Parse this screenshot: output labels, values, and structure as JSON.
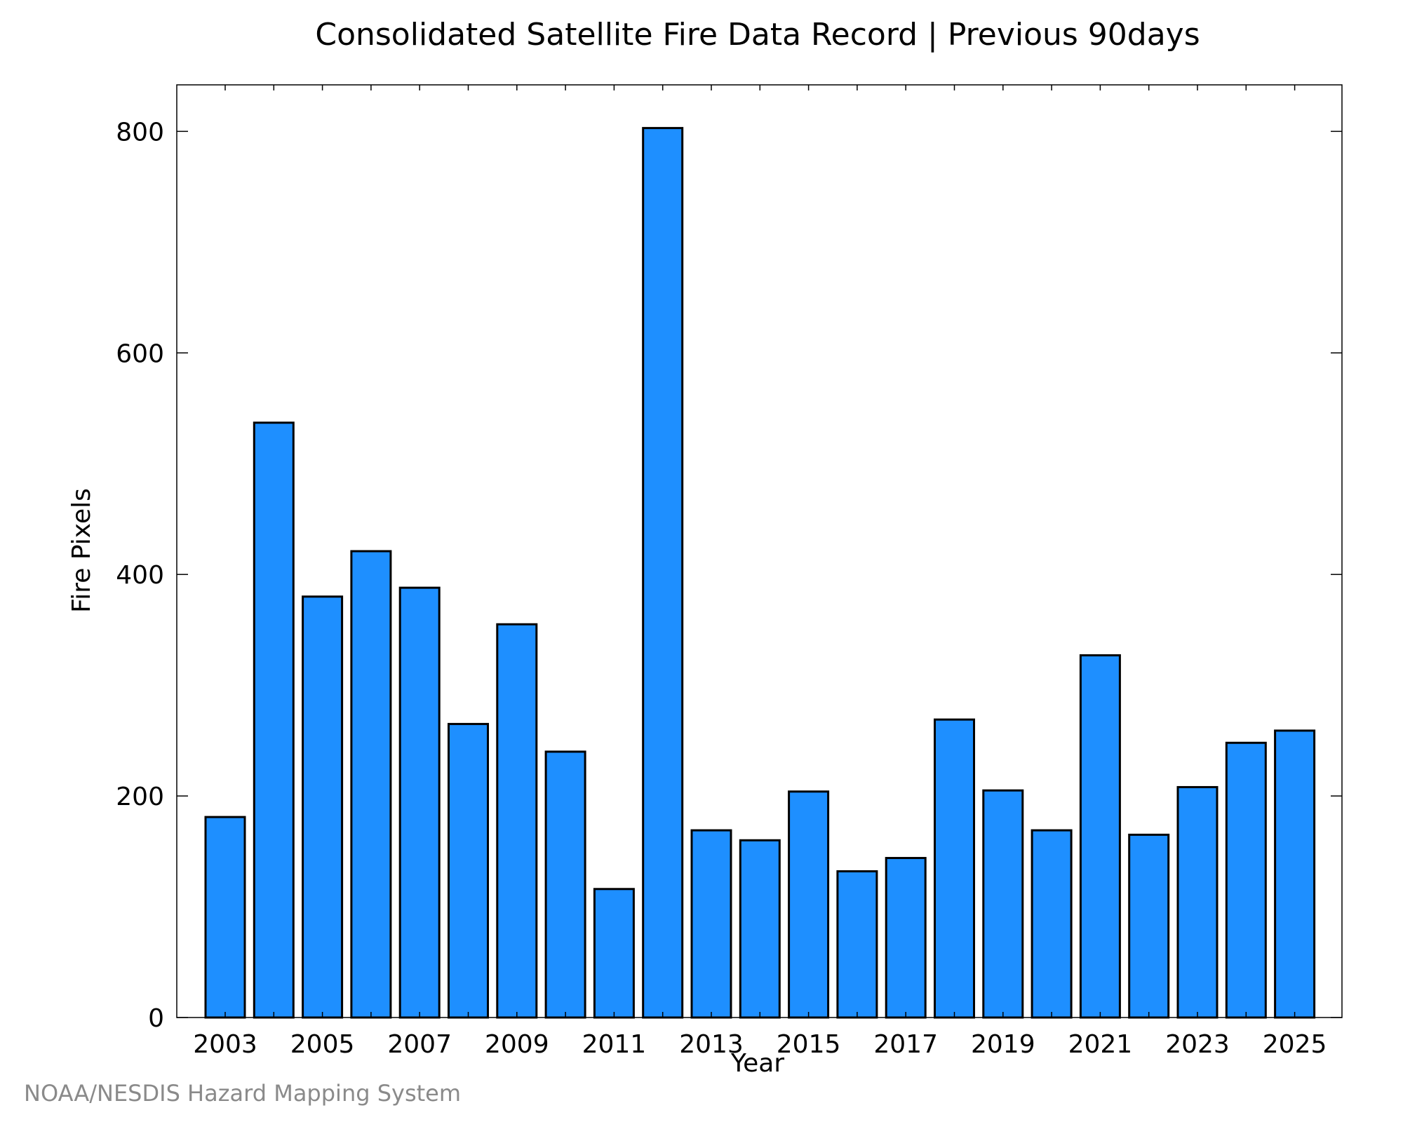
{
  "chart_data": {
    "type": "bar",
    "title": "Consolidated Satellite Fire Data Record | Previous 90days",
    "xlabel": "Year",
    "ylabel": "Fire Pixels",
    "categories": [
      "2003",
      "2004",
      "2005",
      "2006",
      "2007",
      "2008",
      "2009",
      "2010",
      "2011",
      "2012",
      "2013",
      "2014",
      "2015",
      "2016",
      "2017",
      "2018",
      "2019",
      "2020",
      "2021",
      "2022",
      "2023",
      "2024",
      "2025"
    ],
    "values": [
      181,
      537,
      380,
      421,
      388,
      265,
      355,
      240,
      116,
      803,
      169,
      160,
      204,
      132,
      144,
      269,
      205,
      169,
      327,
      165,
      208,
      248,
      259
    ],
    "x_tick_labels": [
      "2003",
      "2005",
      "2007",
      "2009",
      "2011",
      "2013",
      "2015",
      "2017",
      "2019",
      "2021",
      "2023",
      "2025"
    ],
    "y_ticks": [
      0,
      200,
      400,
      600,
      800
    ],
    "ylim": [
      0,
      842
    ],
    "grid": false,
    "bar_color": "#1E8FFF",
    "bar_edge_color": "#000000"
  },
  "footer": {
    "credit": "NOAA/NESDIS Hazard Mapping System"
  }
}
